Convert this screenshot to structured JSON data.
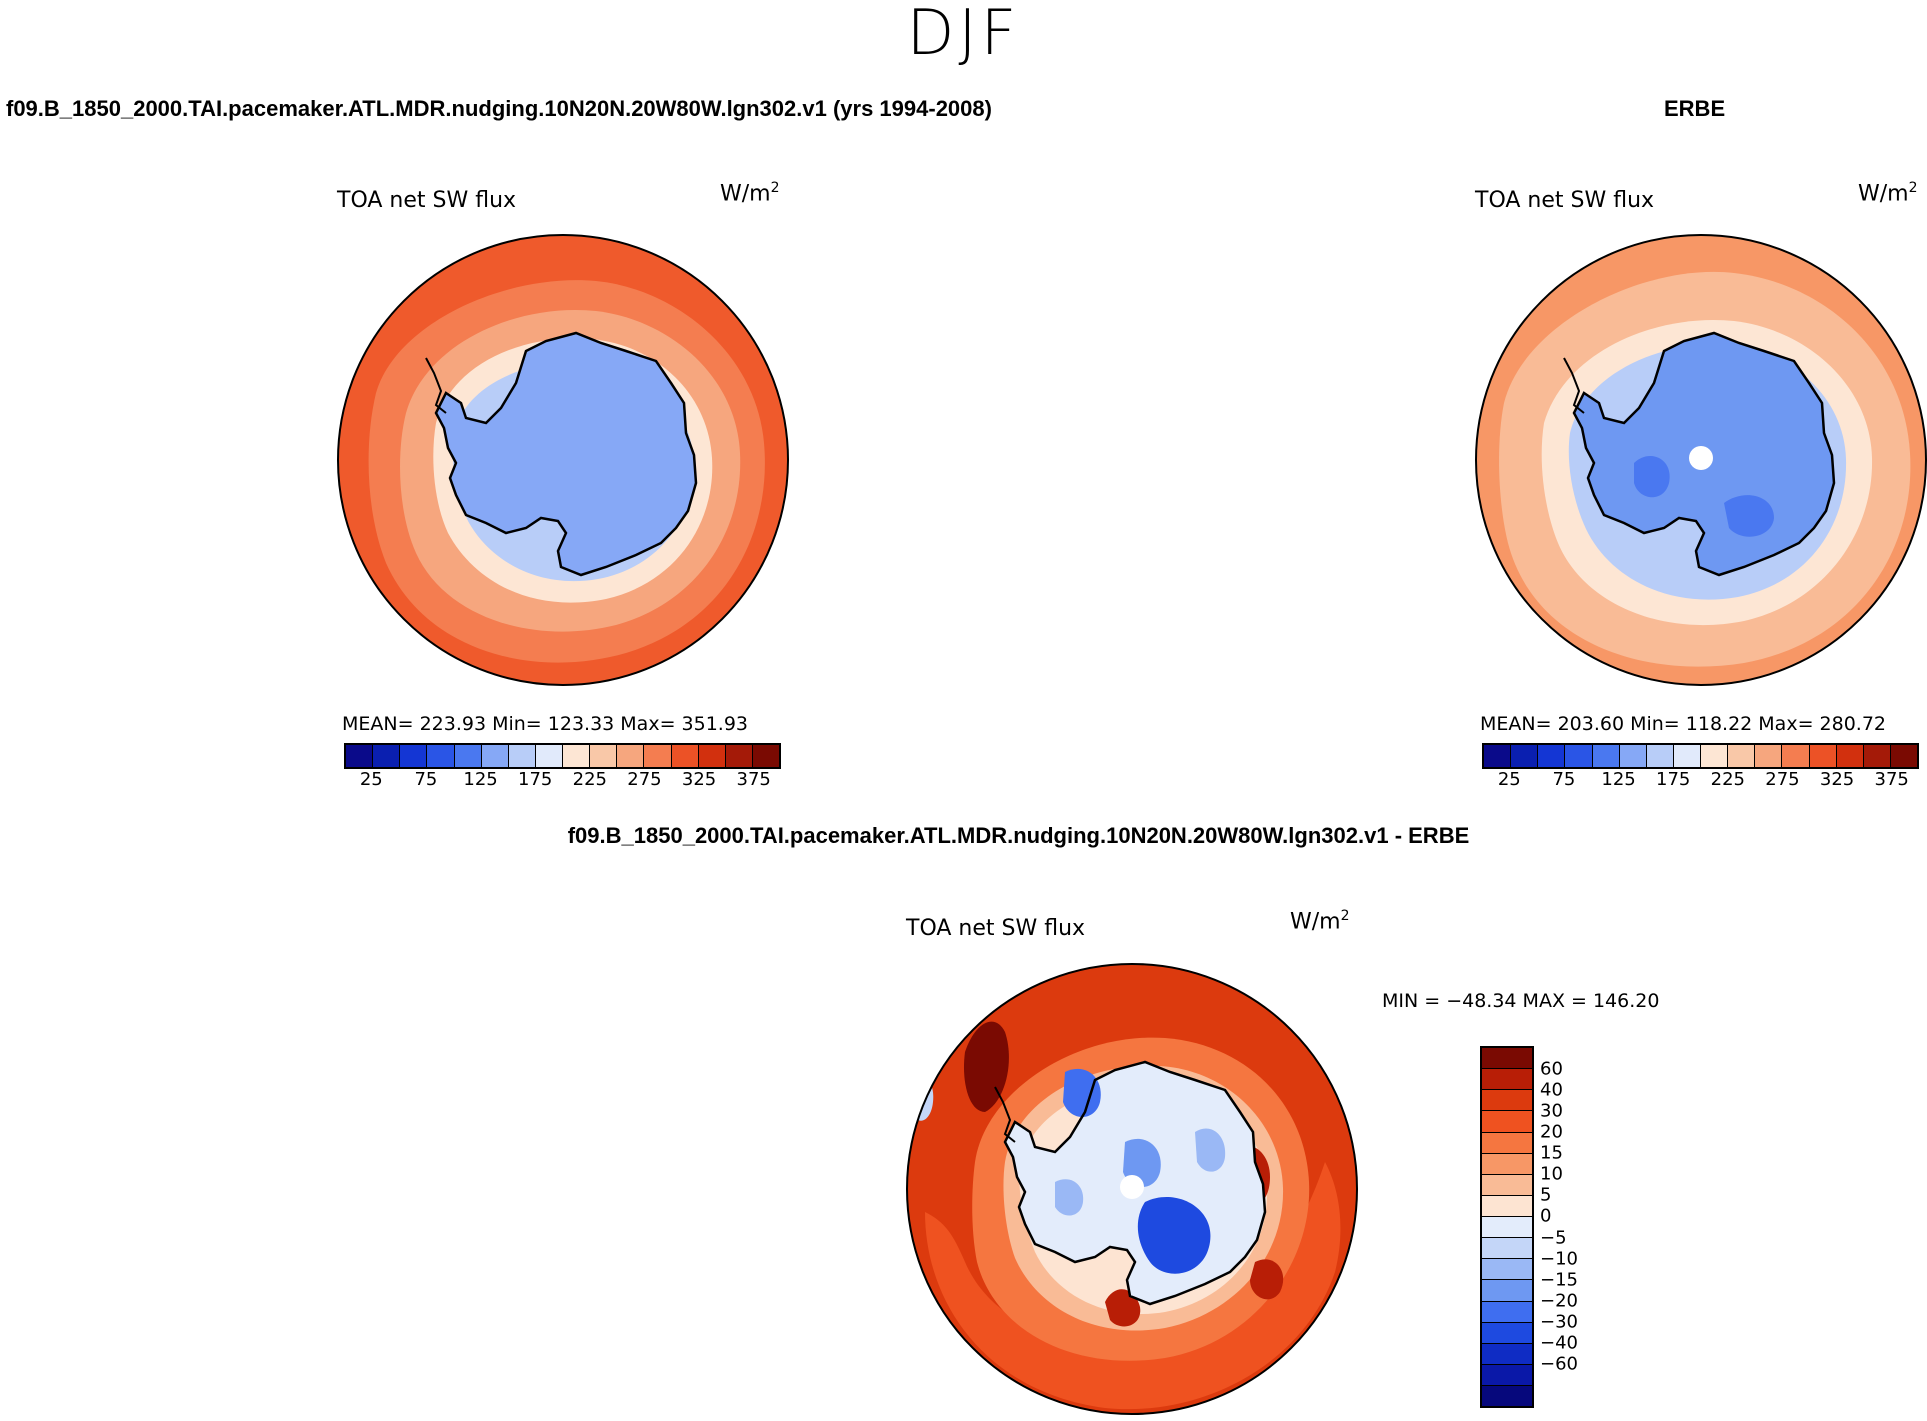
{
  "season": "DJF",
  "panels": {
    "left": {
      "title": "f09.B_1850_2000.TAI.pacemaker.ATL.MDR.nudging.10N20N.20W80W.lgn302.v1 (yrs 1994-2008)",
      "variable": "TOA net SW flux",
      "units_base": "W/m",
      "units_exp": "2",
      "stats": "MEAN= 223.93   Min= 123.33   Max= 351.93"
    },
    "right": {
      "title": "ERBE",
      "variable": "TOA net SW flux",
      "units_base": "W/m",
      "units_exp": "2",
      "stats": "MEAN= 203.60   Min= 118.22   Max= 280.72"
    },
    "bottom": {
      "title": "f09.B_1850_2000.TAI.pacemaker.ATL.MDR.nudging.10N20N.20W80W.lgn302.v1 - ERBE",
      "variable": "TOA net SW flux",
      "units_base": "W/m",
      "units_exp": "2",
      "minmax": "MIN = −48.34  MAX = 146.20"
    }
  },
  "abs_colorbar": {
    "colors": [
      "#0a0a8a",
      "#0a1fb0",
      "#1436d4",
      "#2a55e6",
      "#4a78f0",
      "#86a8f6",
      "#b8cdf8",
      "#e1eafb",
      "#fde6d4",
      "#f9c8a8",
      "#f6a67e",
      "#f47d50",
      "#ec5226",
      "#d2300e",
      "#a41a08",
      "#7a0a02"
    ],
    "labels": [
      "25",
      "75",
      "125",
      "175",
      "225",
      "275",
      "325",
      "375"
    ]
  },
  "diff_colorbar": {
    "colors": [
      "#7a0a02",
      "#b81e06",
      "#dc3a0e",
      "#ef5220",
      "#f57640",
      "#f79766",
      "#f9bb96",
      "#fde4d2",
      "#e3ecfb",
      "#c4d6f8",
      "#9ab8f5",
      "#6e98f2",
      "#3f6ef0",
      "#1e4ae0",
      "#0f2cc4",
      "#0a18a8",
      "#06087c"
    ],
    "labels": [
      "60",
      "40",
      "30",
      "20",
      "15",
      "10",
      "5",
      "0",
      "−5",
      "−10",
      "−15",
      "−20",
      "−30",
      "−40",
      "−60"
    ]
  }
}
